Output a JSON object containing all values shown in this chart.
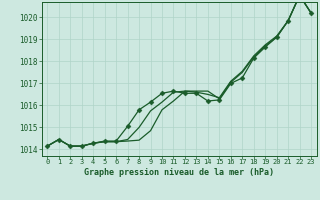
{
  "title": "Graphe pression niveau de la mer (hPa)",
  "bg_color": "#cde8e0",
  "grid_color": "#b0d4c8",
  "line_color": "#1a5c2a",
  "xlim": [
    -0.5,
    23.5
  ],
  "ylim": [
    1013.7,
    1020.7
  ],
  "xticks": [
    0,
    1,
    2,
    3,
    4,
    5,
    6,
    7,
    8,
    9,
    10,
    11,
    12,
    13,
    14,
    15,
    16,
    17,
    18,
    19,
    20,
    21,
    22,
    23
  ],
  "yticks": [
    1014,
    1015,
    1016,
    1017,
    1018,
    1019,
    1020
  ],
  "series_smooth1": [
    1014.15,
    1014.45,
    1014.15,
    1014.15,
    1014.28,
    1014.35,
    1014.35,
    1014.38,
    1014.42,
    1014.85,
    1015.8,
    1016.2,
    1016.65,
    1016.65,
    1016.65,
    1016.3,
    1017.05,
    1017.5,
    1018.2,
    1018.7,
    1019.1,
    1019.85,
    1021.0,
    1020.2
  ],
  "series_smooth2": [
    1014.15,
    1014.45,
    1014.15,
    1014.15,
    1014.28,
    1014.35,
    1014.35,
    1014.45,
    1015.0,
    1015.75,
    1016.15,
    1016.6,
    1016.65,
    1016.6,
    1016.5,
    1016.35,
    1017.1,
    1017.55,
    1018.25,
    1018.75,
    1019.15,
    1019.85,
    1021.0,
    1020.2
  ],
  "series_marker": [
    1014.15,
    1014.45,
    1014.15,
    1014.15,
    1014.28,
    1014.38,
    1014.38,
    1015.05,
    1015.8,
    1016.15,
    1016.55,
    1016.65,
    1016.55,
    1016.55,
    1016.2,
    1016.25,
    1017.0,
    1017.25,
    1018.15,
    1018.65,
    1019.1,
    1019.85,
    1021.0,
    1020.2
  ],
  "marker_style": "D",
  "marker_size": 2.5,
  "linewidth": 0.9
}
